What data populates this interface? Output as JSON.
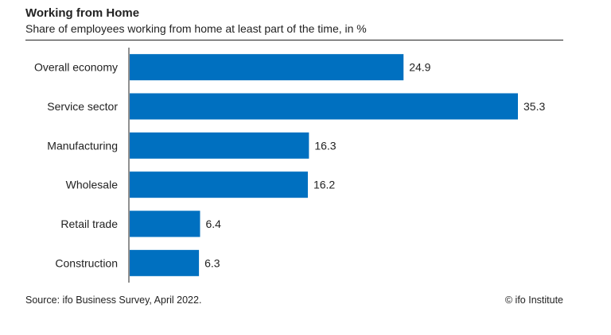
{
  "header": {
    "title": "Working from Home",
    "subtitle": "Share of employees working from home at least part of the time, in %"
  },
  "chart_data": {
    "type": "bar",
    "orientation": "horizontal",
    "title": "Working from Home",
    "subtitle": "Share of employees working from home at least part of the time, in %",
    "categories": [
      "Overall economy",
      "Service sector",
      "Manufacturing",
      "Wholesale",
      "Retail trade",
      "Construction"
    ],
    "values": [
      24.9,
      35.3,
      16.3,
      16.2,
      6.4,
      6.3
    ],
    "value_labels": [
      "24.9",
      "35.3",
      "16.3",
      "16.2",
      "6.4",
      "6.3"
    ],
    "xlim": [
      0,
      35.3
    ],
    "grid": false,
    "bar_color": "#0070c0"
  },
  "footer": {
    "source": "Source: ifo Business Survey, April 2022.",
    "credit": "© ifo Institute"
  }
}
